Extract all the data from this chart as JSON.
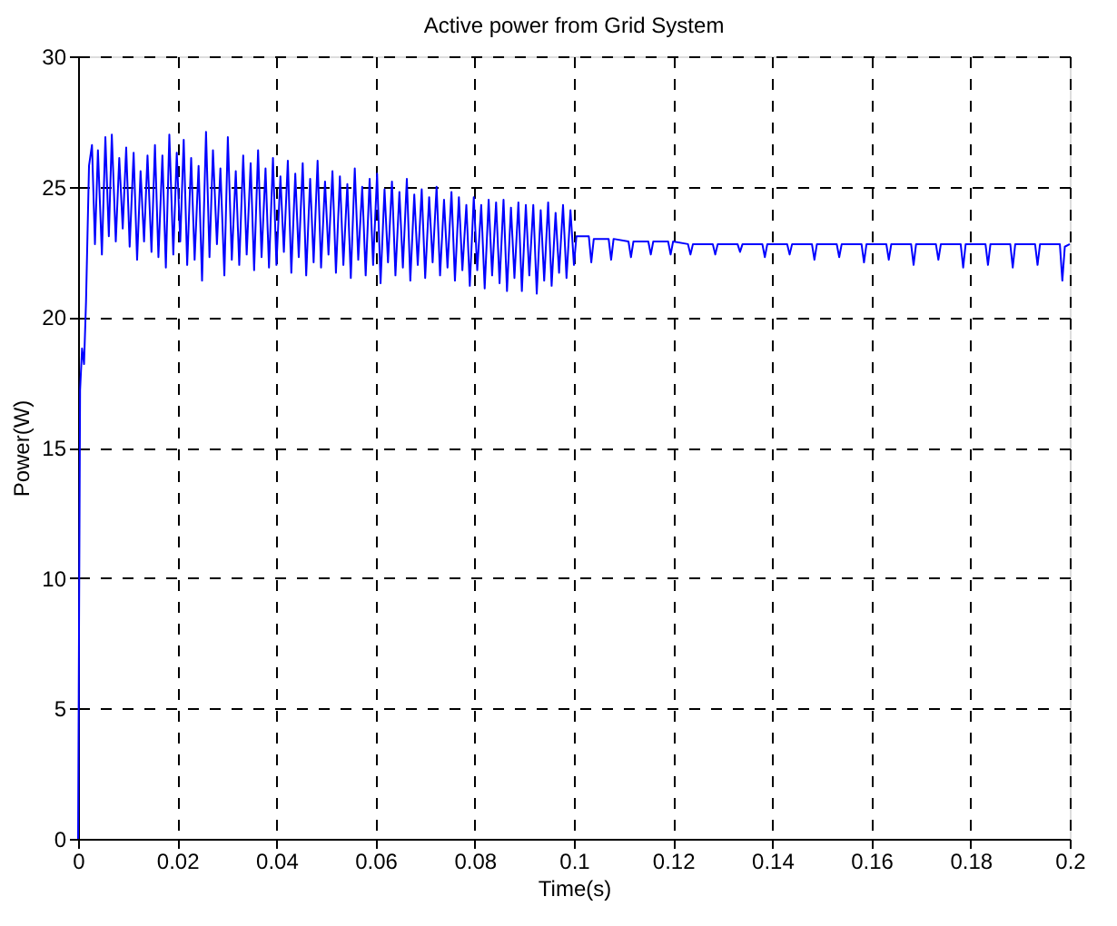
{
  "chart_data": {
    "type": "line",
    "title": "Active power from Grid System",
    "xlabel": "Time(s)",
    "ylabel": "Power(W)",
    "xlim": [
      0,
      0.2
    ],
    "xticks": [
      0,
      0.02,
      0.04,
      0.06,
      0.08,
      0.1,
      0.12,
      0.14,
      0.16,
      0.18,
      0.2
    ],
    "ylim": [
      0,
      30
    ],
    "yticks": [
      0,
      5,
      10,
      15,
      20,
      25,
      30
    ],
    "grid": true,
    "marker": "none",
    "line_style": "solid",
    "series": [
      {
        "color": "#0000ff",
        "x": [
          0,
          0.0004,
          0.0008,
          0.0012,
          0.0016,
          0.0022,
          0.0028,
          0.0034,
          0.004,
          0.0048,
          0.0055,
          0.0062,
          0.0068,
          0.0076,
          0.0083,
          0.009,
          0.0097,
          0.0104,
          0.0112,
          0.0119,
          0.0126,
          0.0133,
          0.014,
          0.0148,
          0.0155,
          0.0162,
          0.017,
          0.0177,
          0.0184,
          0.0192,
          0.0199,
          0.0206,
          0.0213,
          0.022,
          0.0228,
          0.0235,
          0.0243,
          0.025,
          0.0258,
          0.0265,
          0.0272,
          0.028,
          0.0287,
          0.0295,
          0.0302,
          0.031,
          0.0318,
          0.0325,
          0.0333,
          0.034,
          0.0348,
          0.0355,
          0.0363,
          0.037,
          0.0378,
          0.0385,
          0.0393,
          0.04,
          0.0408,
          0.0415,
          0.0423,
          0.043,
          0.0438,
          0.0445,
          0.0453,
          0.046,
          0.0468,
          0.0475,
          0.0483,
          0.049,
          0.0498,
          0.0505,
          0.0513,
          0.052,
          0.0528,
          0.0535,
          0.0543,
          0.055,
          0.0558,
          0.0565,
          0.0573,
          0.058,
          0.0588,
          0.0595,
          0.0603,
          0.061,
          0.0618,
          0.0625,
          0.0633,
          0.064,
          0.0648,
          0.0655,
          0.0663,
          0.067,
          0.0678,
          0.0685,
          0.0693,
          0.07,
          0.0708,
          0.0715,
          0.0723,
          0.073,
          0.0738,
          0.0745,
          0.0753,
          0.076,
          0.0768,
          0.0775,
          0.0783,
          0.079,
          0.0798,
          0.0805,
          0.0813,
          0.082,
          0.0828,
          0.0835,
          0.0843,
          0.085,
          0.0858,
          0.0865,
          0.0873,
          0.088,
          0.0888,
          0.0895,
          0.0903,
          0.091,
          0.0918,
          0.0925,
          0.0933,
          0.094,
          0.0948,
          0.0955,
          0.0963,
          0.097,
          0.0978,
          0.0985,
          0.0993,
          0.1,
          0.1005,
          0.103,
          0.1035,
          0.104,
          0.107,
          0.1075,
          0.108,
          0.111,
          0.1115,
          0.112,
          0.115,
          0.1155,
          0.116,
          0.119,
          0.1195,
          0.12,
          0.123,
          0.1235,
          0.124,
          0.128,
          0.1285,
          0.129,
          0.133,
          0.1335,
          0.134,
          0.138,
          0.1385,
          0.139,
          0.143,
          0.1435,
          0.144,
          0.148,
          0.1485,
          0.149,
          0.153,
          0.1535,
          0.154,
          0.158,
          0.1585,
          0.159,
          0.163,
          0.1635,
          0.164,
          0.168,
          0.1685,
          0.169,
          0.173,
          0.1735,
          0.174,
          0.178,
          0.1785,
          0.179,
          0.183,
          0.1835,
          0.184,
          0.188,
          0.1885,
          0.189,
          0.193,
          0.1935,
          0.194,
          0.198,
          0.1985,
          0.199,
          0.2
        ],
        "values": [
          0,
          17.2,
          18.8,
          18.2,
          20.6,
          25.8,
          26.6,
          22.8,
          26.4,
          22.4,
          26.9,
          23.1,
          27.0,
          22.9,
          26.1,
          23.4,
          26.5,
          22.7,
          26.3,
          22.2,
          25.6,
          22.9,
          26.2,
          22.5,
          26.6,
          22.3,
          26.2,
          21.9,
          27.0,
          22.4,
          26.3,
          22.9,
          26.8,
          22.0,
          26.1,
          22.2,
          25.8,
          21.4,
          27.1,
          22.3,
          26.4,
          22.8,
          25.7,
          21.6,
          26.9,
          22.2,
          25.6,
          22.0,
          26.2,
          22.4,
          25.9,
          21.8,
          26.4,
          22.3,
          25.7,
          21.9,
          26.1,
          22.0,
          25.4,
          22.5,
          26.0,
          21.7,
          25.5,
          22.3,
          25.9,
          21.6,
          25.3,
          22.1,
          26.0,
          21.9,
          25.2,
          22.4,
          25.6,
          21.7,
          25.4,
          22.0,
          25.1,
          21.5,
          25.7,
          22.2,
          25.0,
          21.6,
          25.3,
          22.0,
          25.5,
          21.3,
          24.9,
          22.1,
          25.2,
          21.6,
          24.8,
          21.9,
          25.3,
          21.4,
          24.7,
          22.0,
          24.9,
          21.5,
          24.6,
          22.1,
          25.0,
          21.6,
          24.5,
          21.9,
          24.8,
          21.4,
          24.6,
          21.8,
          24.3,
          21.2,
          24.6,
          21.8,
          24.3,
          21.1,
          24.5,
          21.6,
          24.4,
          21.3,
          24.5,
          21.0,
          24.2,
          21.5,
          24.4,
          21.0,
          24.3,
          21.6,
          24.3,
          20.9,
          24.1,
          21.4,
          24.4,
          21.2,
          24.0,
          21.7,
          24.3,
          21.5,
          24.1,
          22.0,
          23.1,
          23.1,
          22.1,
          23.0,
          23.0,
          22.2,
          23.0,
          22.9,
          22.3,
          22.9,
          22.9,
          22.4,
          22.9,
          22.9,
          22.4,
          22.9,
          22.8,
          22.4,
          22.8,
          22.8,
          22.4,
          22.8,
          22.8,
          22.5,
          22.8,
          22.8,
          22.3,
          22.8,
          22.8,
          22.4,
          22.8,
          22.8,
          22.2,
          22.8,
          22.8,
          22.3,
          22.8,
          22.8,
          22.1,
          22.8,
          22.8,
          22.2,
          22.8,
          22.8,
          22.0,
          22.8,
          22.8,
          22.2,
          22.8,
          22.8,
          21.9,
          22.8,
          22.8,
          22.0,
          22.8,
          22.8,
          21.9,
          22.8,
          22.8,
          22.0,
          22.8,
          22.8,
          21.4,
          22.7,
          22.8
        ]
      }
    ]
  }
}
